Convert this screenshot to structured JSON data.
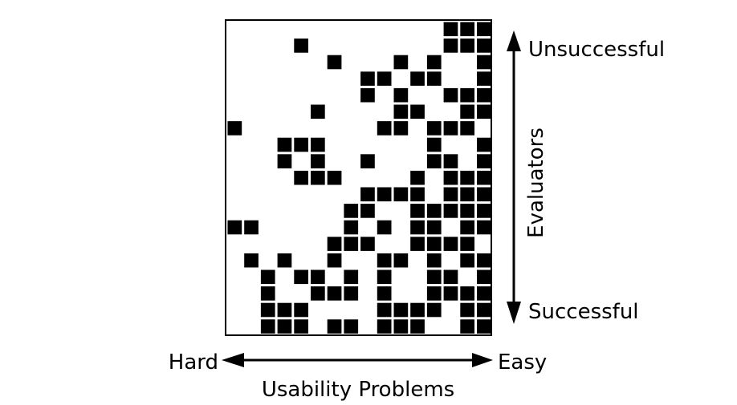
{
  "labels": {
    "top": "Unsuccessful",
    "bottom": "Successful",
    "vertical_axis": "Evaluators",
    "left": "Hard",
    "right": "Easy",
    "horizontal_axis": "Usability Problems"
  },
  "colors": {
    "cell": "#000000",
    "background": "#ffffff",
    "frame": "#000000"
  },
  "matrix": {
    "columns": 16,
    "rows": 19,
    "filled": [
      [
        0,
        [
          13,
          14,
          15
        ]
      ],
      [
        1,
        [
          4,
          13,
          14,
          15
        ]
      ],
      [
        2,
        [
          6,
          10,
          12,
          15
        ]
      ],
      [
        3,
        [
          8,
          9,
          11,
          12,
          15
        ]
      ],
      [
        4,
        [
          8,
          10,
          13,
          14,
          15
        ]
      ],
      [
        5,
        [
          5,
          10,
          11,
          14,
          15
        ]
      ],
      [
        6,
        [
          0,
          9,
          10,
          12,
          13,
          14
        ]
      ],
      [
        7,
        [
          3,
          4,
          5,
          12,
          15
        ]
      ],
      [
        8,
        [
          3,
          5,
          8,
          12,
          13,
          15
        ]
      ],
      [
        9,
        [
          4,
          5,
          6,
          11,
          13,
          14,
          15
        ]
      ],
      [
        10,
        [
          8,
          9,
          10,
          11,
          13,
          14,
          15
        ]
      ],
      [
        11,
        [
          7,
          8,
          11,
          12,
          13,
          14,
          15
        ]
      ],
      [
        12,
        [
          0,
          1,
          7,
          9,
          11,
          12,
          14,
          15
        ]
      ],
      [
        13,
        [
          6,
          7,
          8,
          11,
          12,
          13,
          14
        ]
      ],
      [
        14,
        [
          1,
          3,
          6,
          9,
          10,
          12,
          14,
          15
        ]
      ],
      [
        15,
        [
          2,
          4,
          5,
          7,
          9,
          12,
          13,
          15
        ]
      ],
      [
        16,
        [
          2,
          5,
          6,
          7,
          9,
          12,
          13,
          14,
          15
        ]
      ],
      [
        17,
        [
          2,
          3,
          4,
          9,
          10,
          11,
          12,
          14,
          15
        ]
      ],
      [
        18,
        [
          2,
          3,
          4,
          6,
          7,
          9,
          10,
          11,
          14,
          15
        ]
      ]
    ]
  }
}
